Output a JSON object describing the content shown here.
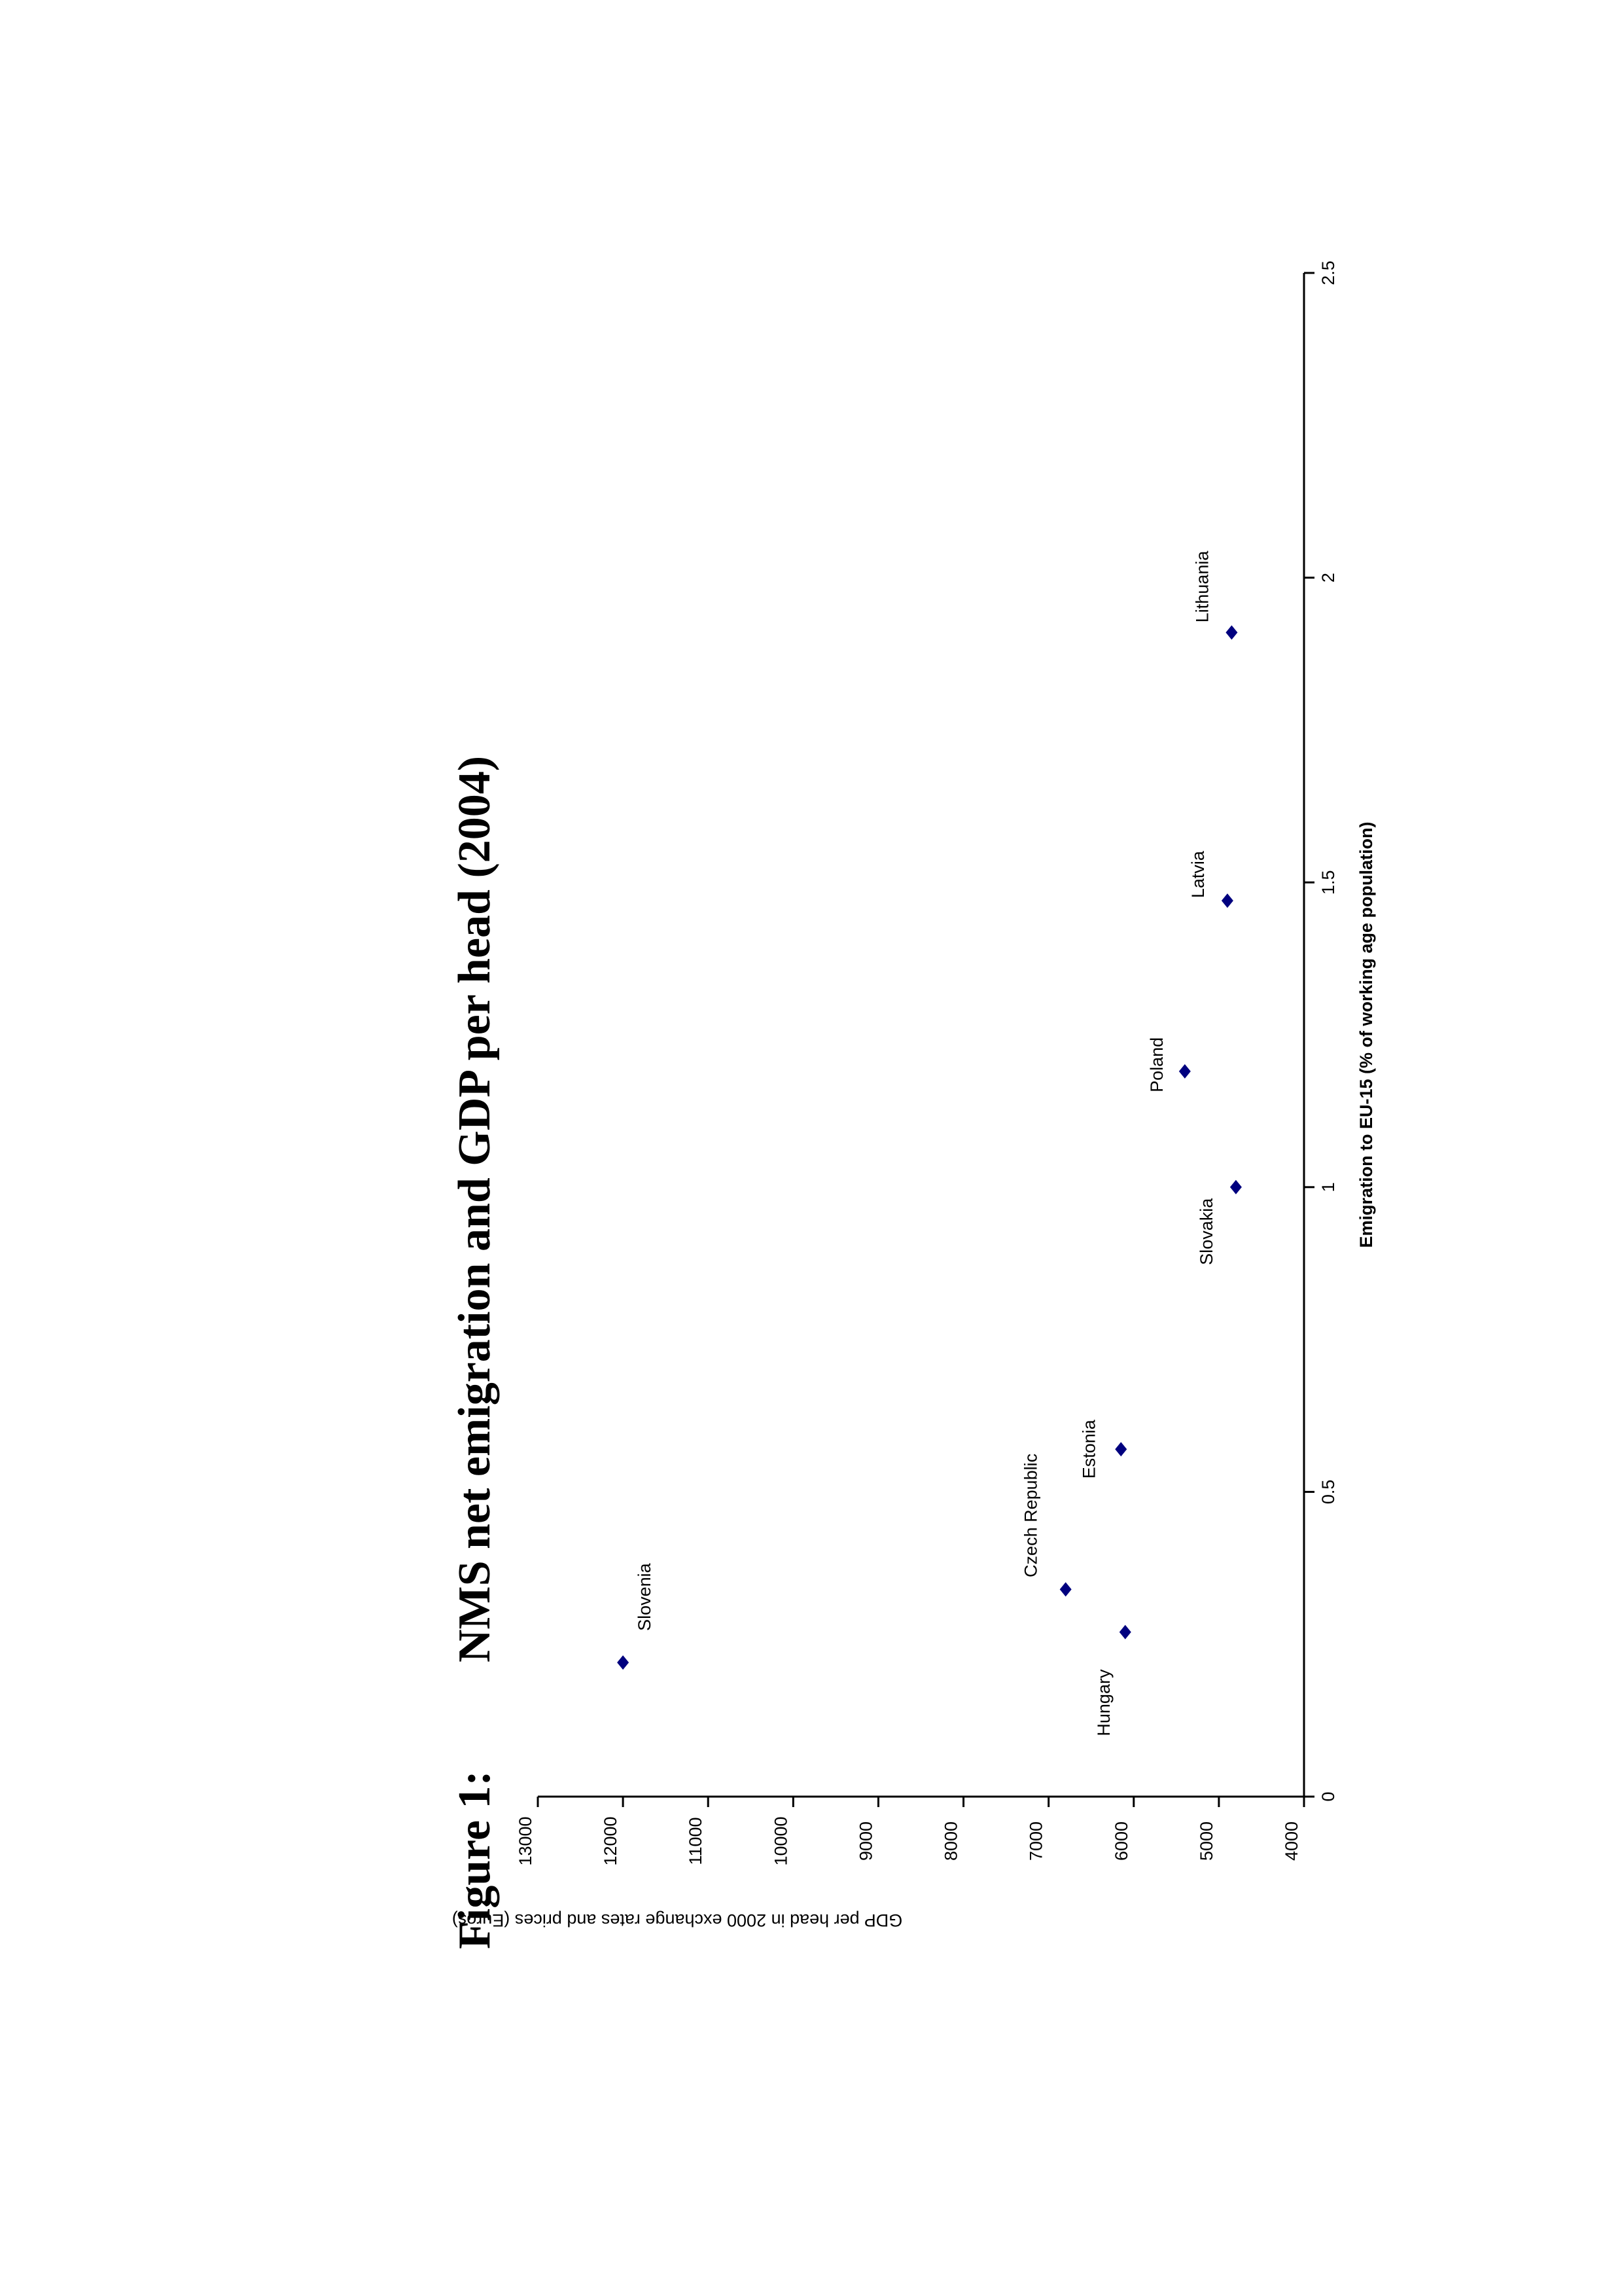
{
  "figure": {
    "label": "Figure 1:",
    "title": "NMS net emigration and GDP per head (2004)"
  },
  "chart_data": {
    "type": "scatter",
    "title": "NMS net emigration and GDP per head (2004)",
    "xlabel": "Emigration to EU-15 (% of working age population)",
    "ylabel": "GDP per head in 2000 exchange rates and prices (Euros)",
    "xlim": [
      0,
      2.5
    ],
    "ylim": [
      4000,
      13000
    ],
    "x_ticks": [
      "0",
      "0.5",
      "1",
      "1.5",
      "2",
      "2.5"
    ],
    "y_ticks": [
      "4000",
      "5000",
      "6000",
      "7000",
      "8000",
      "9000",
      "10000",
      "11000",
      "12000",
      "13000"
    ],
    "grid": false,
    "legend": "none",
    "marker_color": "#00007f",
    "points": [
      {
        "label": "Slovenia",
        "x": 0.22,
        "y": 12000
      },
      {
        "label": "Hungary",
        "x": 0.27,
        "y": 6100
      },
      {
        "label": "Czech Republic",
        "x": 0.34,
        "y": 6800
      },
      {
        "label": "Estonia",
        "x": 0.57,
        "y": 6150
      },
      {
        "label": "Slovakia",
        "x": 1.0,
        "y": 4800
      },
      {
        "label": "Poland",
        "x": 1.19,
        "y": 5400
      },
      {
        "label": "Latvia",
        "x": 1.47,
        "y": 4900
      },
      {
        "label": "Lithuania",
        "x": 1.91,
        "y": 4850
      }
    ]
  }
}
